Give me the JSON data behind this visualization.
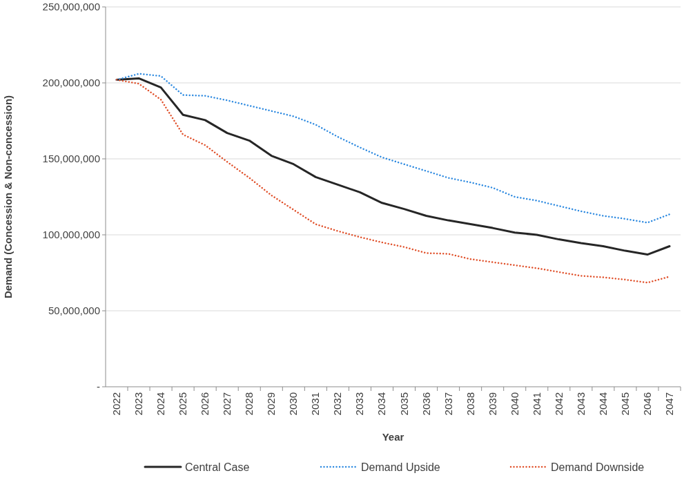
{
  "chart_data": {
    "type": "line",
    "xlabel": "Year",
    "ylabel": "Demand (Concession & Non-concession)",
    "categories": [
      "2022",
      "2023",
      "2024",
      "2025",
      "2026",
      "2027",
      "2028",
      "2029",
      "2030",
      "2031",
      "2032",
      "2033",
      "2034",
      "2035",
      "2036",
      "2037",
      "2038",
      "2039",
      "2040",
      "2041",
      "2042",
      "2043",
      "2044",
      "2045",
      "2046",
      "2047"
    ],
    "series": [
      {
        "name": "Central Case",
        "color": "#262626",
        "line_style": "solid",
        "values": [
          202000000,
          203000000,
          197000000,
          179000000,
          175500000,
          167000000,
          162000000,
          152000000,
          146500000,
          138000000,
          133000000,
          128000000,
          121000000,
          117000000,
          112500000,
          109500000,
          107000000,
          104500000,
          101500000,
          100000000,
          97000000,
          94500000,
          92500000,
          89500000,
          87000000,
          92500000
        ]
      },
      {
        "name": "Demand Upside",
        "color": "#2e8ae0",
        "line_style": "dotted",
        "values": [
          202000000,
          206000000,
          204500000,
          192000000,
          191500000,
          188500000,
          185000000,
          181500000,
          178000000,
          172500000,
          164500000,
          157500000,
          151000000,
          146500000,
          142000000,
          137500000,
          134500000,
          131000000,
          125000000,
          122500000,
          119000000,
          115500000,
          112500000,
          110500000,
          108000000,
          113500000
        ]
      },
      {
        "name": "Demand Downside",
        "color": "#e0502a",
        "line_style": "dotted",
        "values": [
          202000000,
          199500000,
          189000000,
          166000000,
          159000000,
          148000000,
          137500000,
          126000000,
          116500000,
          107000000,
          102500000,
          98500000,
          95000000,
          92000000,
          88000000,
          87500000,
          84000000,
          82000000,
          80000000,
          78000000,
          75500000,
          73000000,
          72000000,
          70500000,
          68500000,
          72500000
        ]
      }
    ],
    "ylim": [
      0,
      250000000
    ],
    "yticks": [
      {
        "value": 0,
        "label": "-"
      },
      {
        "value": 50000000,
        "label": "50,000,000"
      },
      {
        "value": 100000000,
        "label": "100,000,000"
      },
      {
        "value": 150000000,
        "label": "150,000,000"
      },
      {
        "value": 200000000,
        "label": "200,000,000"
      },
      {
        "value": 250000000,
        "label": "250,000,000"
      }
    ],
    "grid": "y",
    "legend": "bottom"
  }
}
